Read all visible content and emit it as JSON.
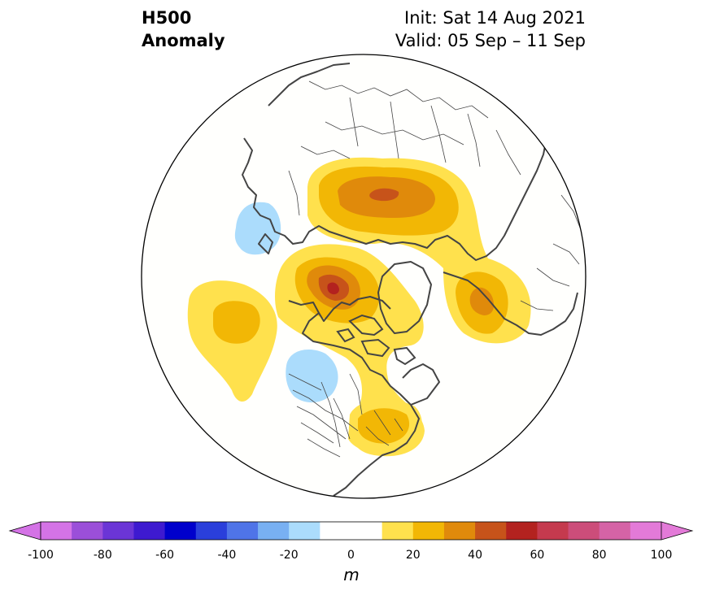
{
  "header": {
    "field_line1": "H500",
    "field_line2": "Anomaly",
    "init": "Init: Sat 14 Aug 2021",
    "valid": "Valid: 05 Sep – 11 Sep"
  },
  "colorbar": {
    "ticks": [
      "-100",
      "-80",
      "-60",
      "-40",
      "-20",
      "0",
      "20",
      "40",
      "60",
      "80",
      "100"
    ],
    "unit": "m",
    "levels": [
      -100,
      -90,
      -80,
      -70,
      -60,
      -50,
      -40,
      -30,
      -20,
      -10,
      10,
      20,
      30,
      40,
      50,
      60,
      70,
      80,
      90,
      100
    ],
    "colors": [
      "#d473e6",
      "#9b4fd9",
      "#6b35d6",
      "#3e1ad0",
      "#0000cc",
      "#2a3fdb",
      "#4f74e8",
      "#78b0f2",
      "#abdcfc",
      "#ffffff",
      "#ffffff",
      "#ffe14d",
      "#f2b705",
      "#e08a0b",
      "#c7531a",
      "#b3221f",
      "#c53a4e",
      "#cc4d7a",
      "#d563a6",
      "#e37ad8"
    ],
    "under_color": "#d473e6",
    "over_color": "#e37ad8"
  },
  "map": {
    "projection": "north-polar-stereographic",
    "regions": "North America, Greenland, Europe, Asia",
    "anomalies": [
      {
        "region": "Europe / western Russia",
        "peak_m": 50
      },
      {
        "region": "Alaska / Bering",
        "peak_m": 60
      },
      {
        "region": "North Pacific",
        "peak_m": 20
      },
      {
        "region": "Eastern Siberia",
        "peak_m": 30
      },
      {
        "region": "Eastern North America",
        "peak_m": 10
      },
      {
        "region": "Northeast Atlantic",
        "peak_m": -10
      },
      {
        "region": "US Pacific Northwest",
        "peak_m": -10
      }
    ]
  }
}
